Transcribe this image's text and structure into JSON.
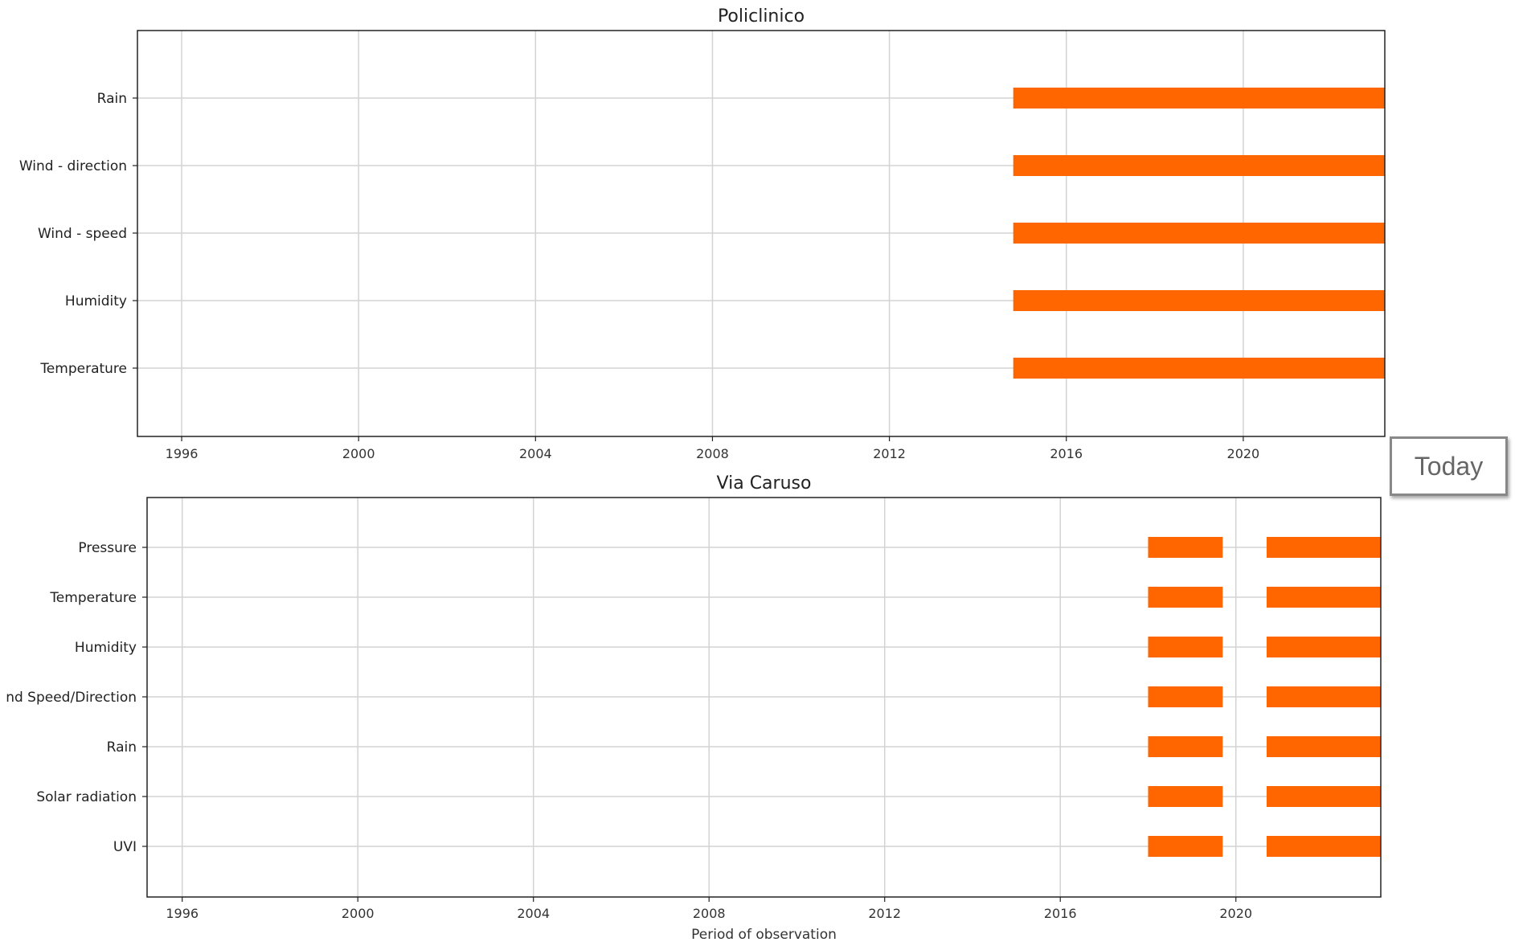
{
  "chart_data": [
    {
      "type": "gantt",
      "title": "Policlinico",
      "xlabel": "",
      "xlim": [
        1995.0,
        2023.2
      ],
      "xticks": [
        1996,
        2000,
        2004,
        2008,
        2012,
        2016,
        2020
      ],
      "grid": true,
      "categories": [
        "Rain",
        "Wind - direction",
        "Wind - speed",
        "Humidity",
        "Temperature"
      ],
      "bar_color": "#ff6600",
      "intervals": [
        {
          "category": "Rain",
          "start": 2014.8,
          "end": 2023.2
        },
        {
          "category": "Wind - direction",
          "start": 2014.8,
          "end": 2023.2
        },
        {
          "category": "Wind - speed",
          "start": 2014.8,
          "end": 2023.2
        },
        {
          "category": "Humidity",
          "start": 2014.8,
          "end": 2023.2
        },
        {
          "category": "Temperature",
          "start": 2014.8,
          "end": 2023.2
        }
      ]
    },
    {
      "type": "gantt",
      "title": "Via Caruso",
      "xlabel": "Period of observation",
      "xlim": [
        1995.2,
        2023.3
      ],
      "xticks": [
        1996,
        2000,
        2004,
        2008,
        2012,
        2016,
        2020
      ],
      "grid": true,
      "categories": [
        "Pressure",
        "Temperature",
        "Humidity",
        "nd Speed/Direction",
        "Rain",
        "Solar radiation",
        "UVI"
      ],
      "bar_color": "#ff6600",
      "intervals": [
        {
          "category": "Pressure",
          "start": 2018.0,
          "end": 2019.7
        },
        {
          "category": "Pressure",
          "start": 2020.7,
          "end": 2023.3
        },
        {
          "category": "Temperature",
          "start": 2018.0,
          "end": 2019.7
        },
        {
          "category": "Temperature",
          "start": 2020.7,
          "end": 2023.3
        },
        {
          "category": "Humidity",
          "start": 2018.0,
          "end": 2019.7
        },
        {
          "category": "Humidity",
          "start": 2020.7,
          "end": 2023.3
        },
        {
          "category": "nd Speed/Direction",
          "start": 2018.0,
          "end": 2019.7
        },
        {
          "category": "nd Speed/Direction",
          "start": 2020.7,
          "end": 2023.3
        },
        {
          "category": "Rain",
          "start": 2018.0,
          "end": 2019.7
        },
        {
          "category": "Rain",
          "start": 2020.7,
          "end": 2023.3
        },
        {
          "category": "Solar radiation",
          "start": 2018.0,
          "end": 2019.7
        },
        {
          "category": "Solar radiation",
          "start": 2020.7,
          "end": 2023.3
        },
        {
          "category": "UVI",
          "start": 2018.0,
          "end": 2019.7
        },
        {
          "category": "UVI",
          "start": 2020.7,
          "end": 2023.3
        }
      ]
    }
  ],
  "today_label": "Today"
}
